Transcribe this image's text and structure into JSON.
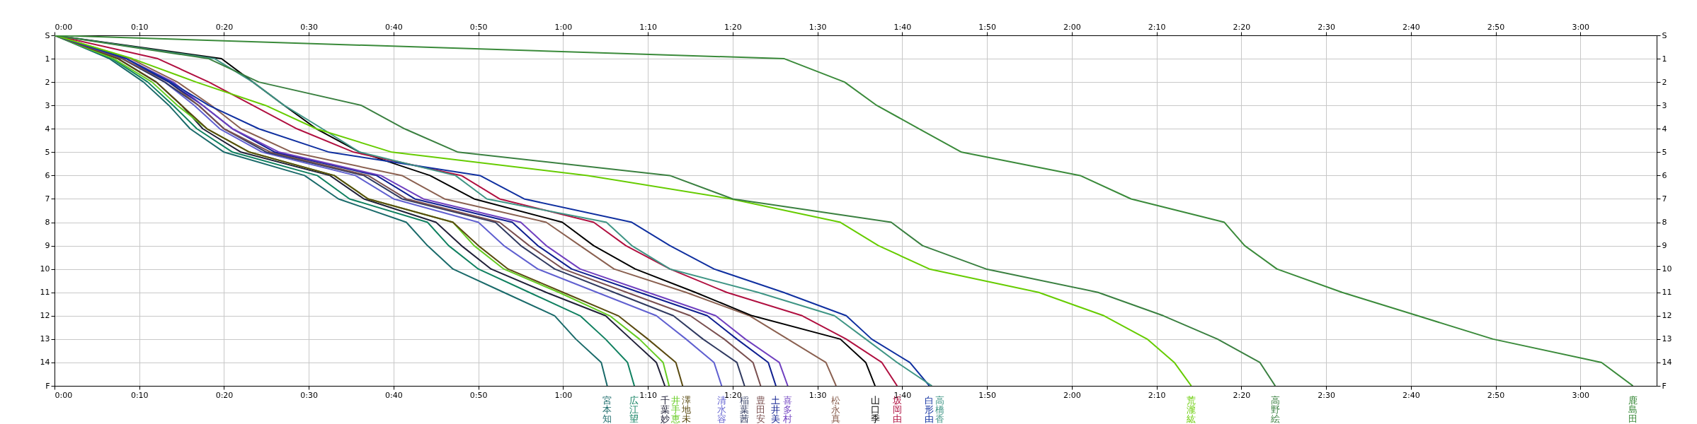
{
  "chart_data": {
    "type": "line",
    "xlim": [
      0,
      189
    ],
    "xticks": [
      {
        "value": 0,
        "label": "0:00"
      },
      {
        "value": 10,
        "label": "0:10"
      },
      {
        "value": 20,
        "label": "0:20"
      },
      {
        "value": 30,
        "label": "0:30"
      },
      {
        "value": 40,
        "label": "0:40"
      },
      {
        "value": 50,
        "label": "0:50"
      },
      {
        "value": 60,
        "label": "1:00"
      },
      {
        "value": 70,
        "label": "1:10"
      },
      {
        "value": 80,
        "label": "1:20"
      },
      {
        "value": 90,
        "label": "1:30"
      },
      {
        "value": 100,
        "label": "1:40"
      },
      {
        "value": 110,
        "label": "1:50"
      },
      {
        "value": 120,
        "label": "2:00"
      },
      {
        "value": 130,
        "label": "2:10"
      },
      {
        "value": 140,
        "label": "2:20"
      },
      {
        "value": 150,
        "label": "2:30"
      },
      {
        "value": 160,
        "label": "2:40"
      },
      {
        "value": 170,
        "label": "2:50"
      },
      {
        "value": 180,
        "label": "3:00"
      }
    ],
    "x2lim": [
      0,
      189
    ],
    "x2ticks": [
      {
        "value": 0,
        "label": "0:00"
      },
      {
        "value": 10,
        "label": "0:10"
      },
      {
        "value": 20,
        "label": "0:20"
      },
      {
        "value": 30,
        "label": "0:30"
      },
      {
        "value": 40,
        "label": "0:40"
      },
      {
        "value": 50,
        "label": "0:50"
      },
      {
        "value": 60,
        "label": "1:00"
      },
      {
        "value": 70,
        "label": "1:10"
      },
      {
        "value": 80,
        "label": "1:20"
      },
      {
        "value": 90,
        "label": "1:30"
      },
      {
        "value": 100,
        "label": "1:40"
      },
      {
        "value": 110,
        "label": "1:50"
      },
      {
        "value": 120,
        "label": "2:00"
      },
      {
        "value": 130,
        "label": "2:10"
      },
      {
        "value": 140,
        "label": "2:20"
      },
      {
        "value": 150,
        "label": "2:30"
      },
      {
        "value": 160,
        "label": "2:40"
      },
      {
        "value": 170,
        "label": "2:50"
      },
      {
        "value": 180,
        "label": "3:00"
      }
    ],
    "ylim": [
      15,
      0
    ],
    "yticks": [
      {
        "value": 0,
        "label": "S"
      },
      1,
      2,
      3,
      4,
      5,
      6,
      7,
      8,
      9,
      10,
      11,
      12,
      13,
      14,
      {
        "value": 15,
        "label": "F"
      }
    ],
    "y2lim": [
      15,
      0
    ],
    "y2ticks": [
      {
        "value": 0,
        "label": "S"
      },
      1,
      2,
      3,
      4,
      5,
      6,
      7,
      8,
      9,
      10,
      11,
      12,
      13,
      14,
      {
        "value": 15,
        "label": "F"
      }
    ],
    "grid": true,
    "legend": false,
    "marker": "none",
    "line_style": "solid",
    "series": [
      {
        "name": "宮本知",
        "color": "#1a6a6a",
        "x": [
          0,
          6.5,
          10.5,
          13.5,
          16,
          20,
          29.5,
          33.5,
          41.5,
          44,
          47,
          53,
          59,
          61.5,
          64.5,
          65.2
        ],
        "values": [
          0,
          1,
          2,
          3,
          4,
          5,
          6,
          7,
          8,
          9,
          10,
          11,
          12,
          13,
          14,
          15
        ]
      },
      {
        "name": "広江望",
        "color": "#108060",
        "x": [
          0,
          6.8,
          11,
          14,
          16.8,
          21,
          31,
          34.8,
          44,
          46.5,
          50,
          56,
          62,
          65,
          67.6,
          68.4
        ],
        "values": [
          0,
          1,
          2,
          3,
          4,
          5,
          6,
          7,
          8,
          9,
          10,
          11,
          12,
          13,
          14,
          15
        ]
      },
      {
        "name": "千葉妙",
        "color": "#202038",
        "x": [
          0,
          7.5,
          12,
          15,
          17.5,
          22,
          32.5,
          36.5,
          45,
          48,
          51.5,
          58,
          65,
          68,
          71,
          72
        ],
        "values": [
          0,
          1,
          2,
          3,
          4,
          5,
          6,
          7,
          8,
          9,
          10,
          11,
          12,
          13,
          14,
          15
        ]
      },
      {
        "name": "井手恵",
        "color": "#66cc22",
        "x": [
          0,
          7,
          11.5,
          14.5,
          18,
          23,
          33,
          37,
          47,
          49.5,
          53,
          59.5,
          65.5,
          69,
          71.8,
          72.5
        ],
        "values": [
          0,
          1,
          2,
          3,
          4,
          5,
          6,
          7,
          8,
          9,
          10,
          11,
          12,
          13,
          14,
          15
        ]
      },
      {
        "name": "澤地未",
        "color": "#5a4a10",
        "x": [
          0,
          7.5,
          12,
          15,
          18,
          23,
          33,
          37,
          47,
          50,
          53.5,
          60,
          66.5,
          70,
          73.3,
          74.1
        ],
        "values": [
          0,
          1,
          2,
          3,
          4,
          5,
          6,
          7,
          8,
          9,
          10,
          11,
          12,
          13,
          14,
          15
        ]
      },
      {
        "name": "清水容",
        "color": "#6060d0",
        "x": [
          0,
          8,
          13,
          16.5,
          19.5,
          24.5,
          35.5,
          40,
          50,
          53,
          57,
          64,
          71,
          74.5,
          77.8,
          78.7
        ],
        "values": [
          0,
          1,
          2,
          3,
          4,
          5,
          6,
          7,
          8,
          9,
          10,
          11,
          12,
          13,
          14,
          15
        ]
      },
      {
        "name": "稲葉茜",
        "color": "#303a60",
        "x": [
          0,
          8,
          13,
          17,
          20,
          25,
          36.5,
          41,
          52,
          55,
          59,
          66,
          73,
          76.5,
          80.5,
          81.4
        ],
        "values": [
          0,
          1,
          2,
          3,
          4,
          5,
          6,
          7,
          8,
          9,
          10,
          11,
          12,
          13,
          14,
          15
        ]
      },
      {
        "name": "豊田安",
        "color": "#7a5050",
        "x": [
          0,
          8,
          13.5,
          17,
          20,
          25.5,
          37,
          41.5,
          52.5,
          56,
          60,
          67.5,
          75,
          79,
          82.4,
          83.3
        ],
        "values": [
          0,
          1,
          2,
          3,
          4,
          5,
          6,
          7,
          8,
          9,
          10,
          11,
          12,
          13,
          14,
          15
        ]
      },
      {
        "name": "土井美",
        "color": "#102090",
        "x": [
          0,
          8.5,
          13.5,
          17.5,
          21,
          26,
          38,
          42.5,
          54,
          57,
          61,
          69,
          77,
          80.5,
          84.2,
          85.1
        ],
        "values": [
          0,
          1,
          2,
          3,
          4,
          5,
          6,
          7,
          8,
          9,
          10,
          11,
          12,
          13,
          14,
          15
        ]
      },
      {
        "name": "喜多村",
        "color": "#7040c0",
        "x": [
          0,
          8.5,
          14,
          17.5,
          21,
          26.5,
          38.5,
          43.5,
          55,
          58,
          62,
          70,
          78,
          81.5,
          85.5,
          86.5
        ],
        "values": [
          0,
          1,
          2,
          3,
          4,
          5,
          6,
          7,
          8,
          9,
          10,
          11,
          12,
          13,
          14,
          15
        ]
      },
      {
        "name": "松永真",
        "color": "#8a6050",
        "x": [
          0,
          9,
          14.5,
          18.5,
          22,
          28,
          41,
          46,
          58,
          62,
          66,
          74.5,
          82,
          86.5,
          91,
          92.2
        ],
        "values": [
          0,
          1,
          2,
          3,
          4,
          5,
          6,
          7,
          8,
          9,
          10,
          11,
          12,
          13,
          14,
          15
        ]
      },
      {
        "name": "山口季",
        "color": "#000000",
        "x": [
          0,
          19.7,
          23.4,
          27.1,
          30.9,
          36,
          44.3,
          49.5,
          59.9,
          63.6,
          68.5,
          75.6,
          82.3,
          92.7,
          95.7,
          96.8
        ],
        "values": [
          0,
          1,
          2,
          3,
          4,
          5,
          6,
          7,
          8,
          9,
          10,
          11,
          12,
          13,
          14,
          15
        ]
      },
      {
        "name": "坂岡由",
        "color": "#b01040",
        "x": [
          0,
          12.2,
          18.2,
          23.4,
          28.6,
          35.3,
          48,
          52.5,
          63.6,
          67.4,
          72.6,
          79.3,
          88.2,
          93.4,
          97.6,
          99.4
        ],
        "values": [
          0,
          1,
          2,
          3,
          4,
          5,
          6,
          7,
          8,
          9,
          10,
          11,
          12,
          13,
          14,
          15
        ]
      },
      {
        "name": "白形由",
        "color": "#1030a0",
        "x": [
          0,
          8.5,
          13.7,
          18.2,
          24.1,
          32.4,
          50.2,
          55.4,
          68.1,
          72.6,
          77.8,
          86,
          93.4,
          96.4,
          100.9,
          103.2
        ],
        "values": [
          0,
          1,
          2,
          3,
          4,
          5,
          6,
          7,
          8,
          9,
          10,
          11,
          12,
          13,
          14,
          15
        ]
      },
      {
        "name": "高橋香",
        "color": "#3f9585",
        "x": [
          0,
          18.9,
          23.4,
          27.1,
          31.6,
          36,
          47.3,
          51,
          65.1,
          68.1,
          72.6,
          83,
          92,
          95.7,
          99.4,
          103.5
        ],
        "values": [
          0,
          1,
          2,
          3,
          4,
          5,
          6,
          7,
          8,
          9,
          10,
          11,
          12,
          13,
          14,
          15
        ]
      },
      {
        "name": "荒瀧紘",
        "color": "#66cc00",
        "x": [
          0,
          9.2,
          16.7,
          24.9,
          30.9,
          39.8,
          62.9,
          79.8,
          92.7,
          97.2,
          103.2,
          116.1,
          123.8,
          128.9,
          132.1,
          134.1
        ],
        "values": [
          0,
          1,
          2,
          3,
          4,
          5,
          6,
          7,
          8,
          9,
          10,
          11,
          12,
          13,
          14,
          15
        ]
      },
      {
        "name": "高野絵",
        "color": "#3a8040",
        "x": [
          0,
          18.2,
          24.1,
          36.2,
          41.3,
          47.6,
          72.6,
          80,
          98.7,
          102.4,
          109.9,
          123.1,
          130.8,
          137.2,
          142.2,
          144
        ],
        "values": [
          0,
          1,
          2,
          3,
          4,
          5,
          6,
          7,
          8,
          9,
          10,
          11,
          12,
          13,
          14,
          15
        ]
      },
      {
        "name": "鹿島田",
        "color": "#3a8a3a",
        "x": [
          0,
          86.1,
          93.2,
          97,
          102,
          107,
          121,
          127,
          138,
          140.4,
          144.2,
          151.9,
          160.8,
          169.7,
          182.5,
          186.2
        ],
        "values": [
          0,
          1,
          2,
          3,
          4,
          5,
          6,
          7,
          8,
          9,
          10,
          11,
          12,
          13,
          14,
          15
        ]
      }
    ]
  }
}
